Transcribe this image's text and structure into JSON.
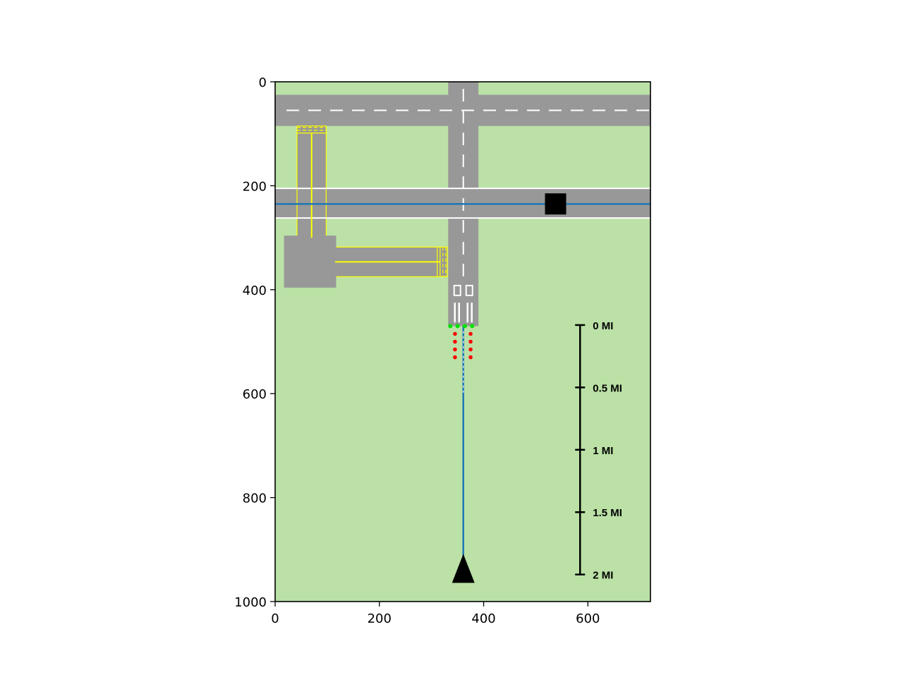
{
  "chart_data": {
    "type": "scatter",
    "title": "",
    "xlabel": "",
    "ylabel": "",
    "xlim": [
      0,
      720
    ],
    "ylim": [
      1000,
      0
    ],
    "y_inverted": true,
    "grid": false,
    "x_ticks": [
      "0",
      "200",
      "400",
      "600"
    ],
    "y_ticks": [
      "0",
      "200",
      "400",
      "600",
      "800",
      "1000"
    ],
    "colors": {
      "grass": "#bbe1a6",
      "pavement": "#989898",
      "taxi_line": "#ffff00",
      "runway_marking": "#ffffff",
      "path_line": "#1f77b4",
      "green_lights": "#00e000",
      "red_lights": "#ff0000",
      "marker": "#000000"
    },
    "runways": [
      {
        "orientation": "horizontal",
        "x_from": 0,
        "x_to": 720,
        "y_from": 25,
        "y_to": 85,
        "centerline": "dashed"
      },
      {
        "orientation": "horizontal",
        "x_from": 0,
        "x_to": 720,
        "y_from": 205,
        "y_to": 262,
        "edge_lines": true
      },
      {
        "orientation": "vertical",
        "x_from": 332,
        "x_to": 390,
        "y_from": 0,
        "y_to": 470,
        "centerline": "dashed",
        "threshold_markings": true
      }
    ],
    "taxiways": [
      {
        "orientation": "vertical",
        "x_from": 42,
        "x_to": 98,
        "y_from": 85,
        "y_to": 300
      },
      {
        "orientation": "horizontal",
        "x_from": 115,
        "x_to": 330,
        "y_from": 318,
        "y_to": 375
      }
    ],
    "apron": {
      "x_from": 17,
      "x_to": 117,
      "y_from": 296,
      "y_to": 396
    },
    "path_lines": [
      {
        "x": [
          0,
          720
        ],
        "y": [
          235,
          235
        ]
      },
      {
        "x": [
          361,
          361
        ],
        "y": [
          470,
          940
        ]
      }
    ],
    "approach_lights": {
      "green": {
        "x": [
          336,
          350,
          364,
          378
        ],
        "y": [
          470,
          470,
          470,
          470
        ]
      },
      "red": {
        "x": [
          345,
          345,
          345,
          345,
          375,
          375,
          375,
          375
        ],
        "y": [
          485,
          500,
          515,
          530,
          485,
          500,
          515,
          530
        ]
      }
    },
    "markers": [
      {
        "shape": "square",
        "x": 538,
        "y": 235
      },
      {
        "shape": "triangle",
        "x": 361,
        "y": 945
      }
    ],
    "scale_bar": {
      "labels": [
        "0 MI",
        "0.5 MI",
        "1 MI",
        "1.5 MI",
        "2 MI"
      ],
      "x": 585,
      "y": [
        468,
        588,
        708,
        828,
        948
      ]
    }
  }
}
